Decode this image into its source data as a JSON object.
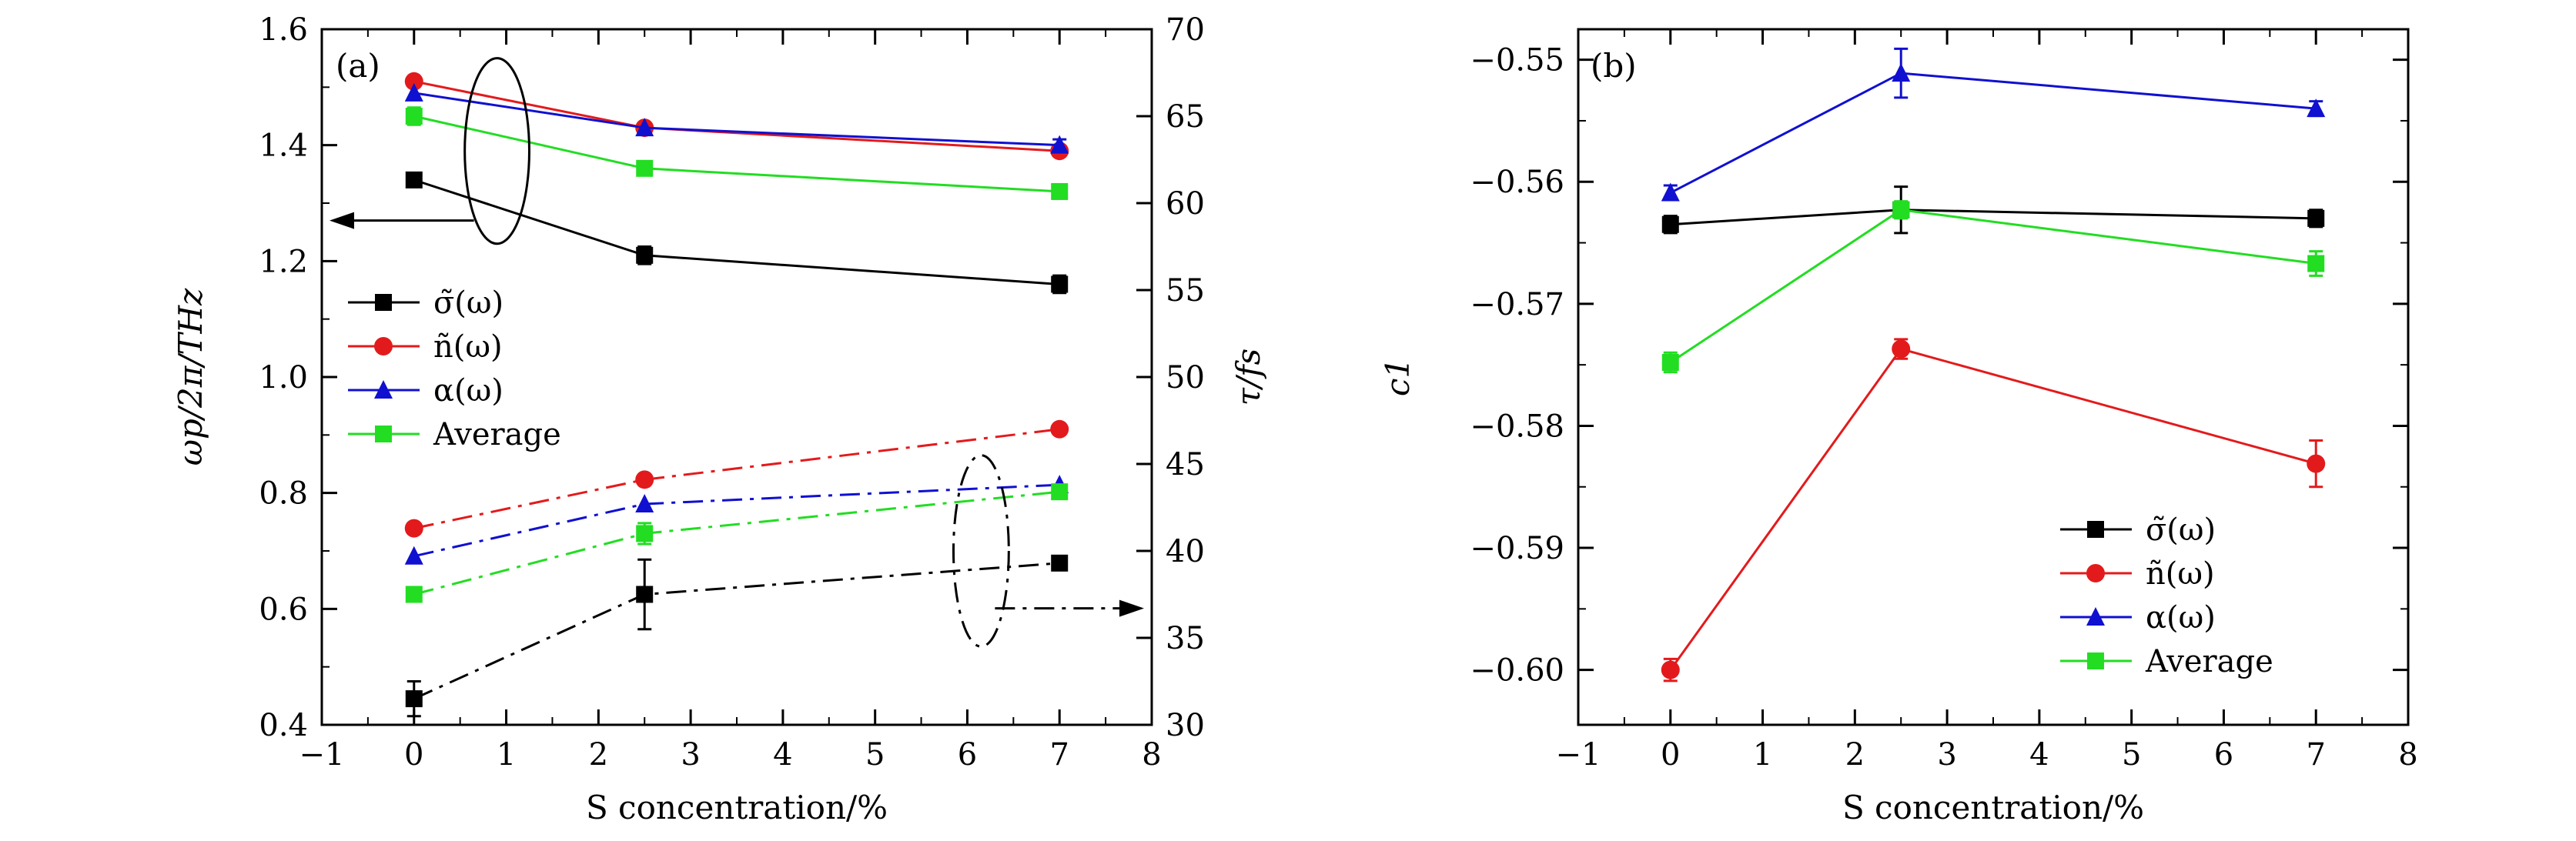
{
  "figure": {
    "panels": [
      "(a)",
      "(b)"
    ]
  },
  "chart_data": [
    {
      "type": "line",
      "panel_label": "(a)",
      "xlabel": "S concentration/%",
      "ylabel_left": "ωp/2π/THz",
      "ylabel_right": "τ/fs",
      "xlim": [
        -1,
        8
      ],
      "ylim_left": [
        0.4,
        1.6
      ],
      "ylim_right": [
        30,
        70
      ],
      "x_ticks": [
        "−1",
        "0",
        "1",
        "2",
        "3",
        "4",
        "5",
        "6",
        "7",
        "8"
      ],
      "y_ticks_left": [
        "0.4",
        "0.6",
        "0.8",
        "1.0",
        "1.2",
        "1.4",
        "1.6"
      ],
      "y_ticks_right": [
        "30",
        "35",
        "40",
        "45",
        "50",
        "55",
        "60",
        "65",
        "70"
      ],
      "x": [
        0,
        2.5,
        7
      ],
      "legend": {
        "placement": "left-middle",
        "entries": [
          "σ̃(ω)",
          "ñ(ω)",
          "α(ω)",
          "Average"
        ]
      },
      "series": [
        {
          "name": "σ̃(ω)",
          "axis": "left",
          "color": "#000000",
          "marker": "square",
          "line": "solid",
          "values": [
            1.34,
            1.21,
            1.16
          ],
          "errors": [
            0.0,
            0.015,
            0.015
          ]
        },
        {
          "name": "ñ(ω)",
          "axis": "left",
          "color": "#e31a1c",
          "marker": "circle",
          "line": "solid",
          "values": [
            1.51,
            1.43,
            1.39
          ],
          "errors": [
            0.0,
            0.0,
            0.0
          ]
        },
        {
          "name": "α(ω)",
          "axis": "left",
          "color": "#1010d0",
          "marker": "triangle",
          "line": "solid",
          "values": [
            1.49,
            1.43,
            1.4
          ],
          "errors": [
            0.0,
            0.0,
            0.01
          ]
        },
        {
          "name": "Average",
          "axis": "left",
          "color": "#22dd22",
          "marker": "square",
          "line": "solid",
          "values": [
            1.45,
            1.36,
            1.32
          ],
          "errors": [
            0.015,
            0.0,
            0.0
          ]
        },
        {
          "name": "σ̃(ω)",
          "axis": "right",
          "color": "#000000",
          "marker": "square",
          "line": "dashdot",
          "values": [
            31.5,
            37.5,
            39.3
          ],
          "errors": [
            1.0,
            2.0,
            0.0
          ]
        },
        {
          "name": "ñ(ω)",
          "axis": "right",
          "color": "#e31a1c",
          "marker": "circle",
          "line": "dashdot",
          "values": [
            41.3,
            44.1,
            47.0
          ],
          "errors": [
            0.0,
            0.0,
            0.0
          ]
        },
        {
          "name": "α(ω)",
          "axis": "right",
          "color": "#1010d0",
          "marker": "triangle",
          "line": "dashdot",
          "values": [
            39.7,
            42.7,
            43.8
          ],
          "errors": [
            0.0,
            0.0,
            0.0
          ]
        },
        {
          "name": "Average",
          "axis": "right",
          "color": "#22dd22",
          "marker": "square",
          "line": "dashdot",
          "values": [
            37.5,
            41.0,
            43.4
          ],
          "errors": [
            0.0,
            0.6,
            0.0
          ]
        }
      ],
      "annotations": [
        {
          "type": "ellipse",
          "style": "solid",
          "center": [
            0.9,
            1.39
          ],
          "radii": [
            0.35,
            0.16
          ],
          "arrow_to": "left-axis"
        },
        {
          "type": "ellipse",
          "style": "dashdot",
          "center": [
            6.15,
            40.0
          ],
          "radii": [
            0.3,
            5.5
          ],
          "arrow_to": "right-axis"
        }
      ]
    },
    {
      "type": "line",
      "panel_label": "(b)",
      "xlabel": "S concentration/%",
      "ylabel": "c1",
      "xlim": [
        -1,
        8
      ],
      "ylim": [
        -0.6045,
        -0.5475
      ],
      "x_ticks": [
        "−1",
        "0",
        "1",
        "2",
        "3",
        "4",
        "5",
        "6",
        "7",
        "8"
      ],
      "y_ticks": [
        "−0.60",
        "−0.59",
        "−0.58",
        "−0.57",
        "−0.56",
        "−0.55"
      ],
      "x": [
        0,
        2.5,
        7
      ],
      "legend": {
        "placement": "bottom-right",
        "entries": [
          "σ̃(ω)",
          "ñ(ω)",
          "α(ω)",
          "Average"
        ]
      },
      "series": [
        {
          "name": "σ̃(ω)",
          "color": "#000000",
          "marker": "square",
          "values": [
            -0.5635,
            -0.5623,
            -0.563
          ],
          "errors": [
            0.0007,
            0.0019,
            0.0007
          ]
        },
        {
          "name": "ñ(ω)",
          "color": "#e31a1c",
          "marker": "circle",
          "values": [
            -0.6,
            -0.5737,
            -0.5831
          ],
          "errors": [
            0.0009,
            0.0008,
            0.0019
          ]
        },
        {
          "name": "α(ω)",
          "color": "#1010d0",
          "marker": "triangle",
          "values": [
            -0.5609,
            -0.5511,
            -0.554
          ],
          "errors": [
            0.0006,
            0.002,
            0.0006
          ]
        },
        {
          "name": "Average",
          "color": "#22dd22",
          "marker": "square",
          "values": [
            -0.5748,
            -0.5623,
            -0.5667
          ],
          "errors": [
            0.0008,
            0.0007,
            0.001
          ]
        }
      ]
    }
  ]
}
